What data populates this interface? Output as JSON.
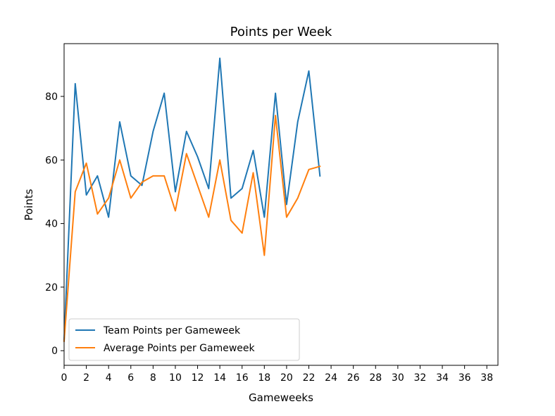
{
  "chart_data": {
    "type": "line",
    "title": "Points per Week",
    "xlabel": "Gameweeks",
    "ylabel": "Points",
    "xlim": [
      0,
      39
    ],
    "ylim": [
      -4.6,
      96.6
    ],
    "xticks": [
      0,
      2,
      4,
      6,
      8,
      10,
      12,
      14,
      16,
      18,
      20,
      22,
      24,
      26,
      28,
      30,
      32,
      34,
      36,
      38
    ],
    "yticks": [
      0,
      20,
      40,
      60,
      80
    ],
    "grid": false,
    "legend_position": "lower-left",
    "x": [
      0,
      1,
      2,
      3,
      4,
      5,
      6,
      7,
      8,
      9,
      10,
      11,
      12,
      13,
      14,
      15,
      16,
      17,
      18,
      19,
      20,
      21,
      22,
      23
    ],
    "series": [
      {
        "name": "Team Points per Gameweek",
        "color": "#1f77b4",
        "values": [
          3,
          84,
          49,
          55,
          42,
          72,
          55,
          52,
          69,
          81,
          50,
          69,
          61,
          51,
          92,
          48,
          51,
          63,
          42,
          81,
          46,
          72,
          88,
          55
        ]
      },
      {
        "name": "Average Points per Gameweek",
        "color": "#ff7f0e",
        "values": [
          3,
          50,
          59,
          43,
          48,
          60,
          48,
          53,
          55,
          55,
          44,
          62,
          52,
          42,
          60,
          41,
          37,
          56,
          30,
          74,
          42,
          48,
          57,
          58
        ]
      }
    ]
  }
}
